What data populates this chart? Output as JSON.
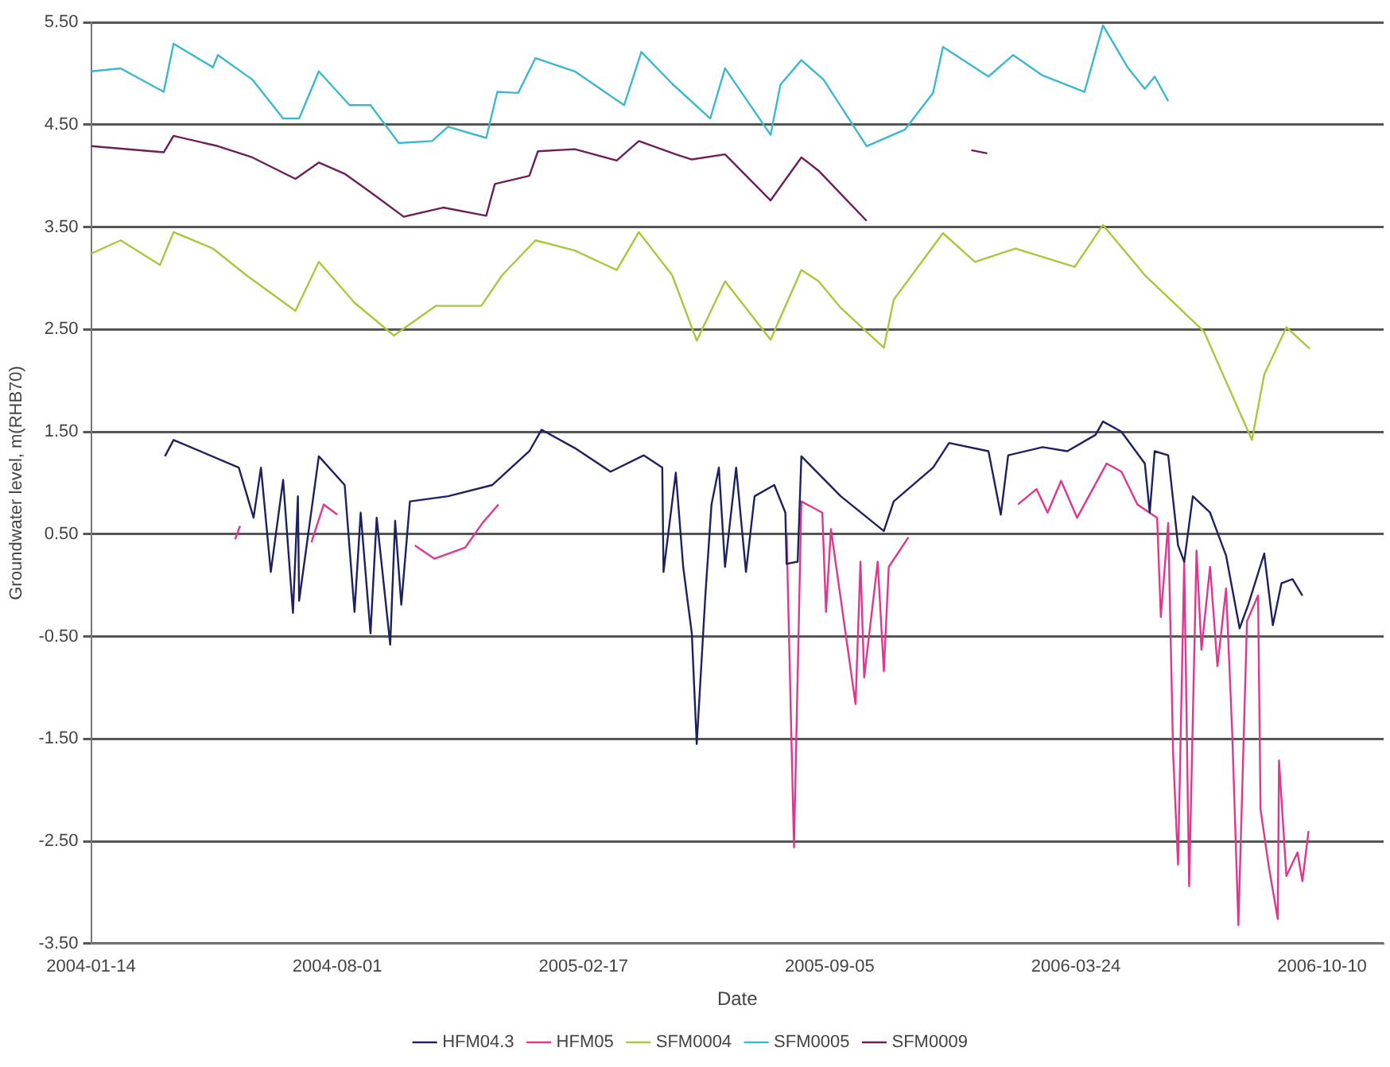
{
  "chart_data": {
    "type": "line",
    "xlabel": "Date",
    "ylabel": "Groundwater level, m(RHB70)",
    "legend": "bottom",
    "grid": "y",
    "marker": "none",
    "line_style": "solid",
    "xlim": [
      "2004-01-14",
      "2006-11-29"
    ],
    "xticks": [
      "2004-01-14",
      "2004-08-01",
      "2005-02-17",
      "2005-09-05",
      "2006-03-24",
      "2006-10-10"
    ],
    "ylim": [
      -3.5,
      5.5
    ],
    "yticks": [
      {
        "value": -3.5,
        "label": "-3.50"
      },
      {
        "value": -2.5,
        "label": "-2.50"
      },
      {
        "value": -1.5,
        "label": "-1.50"
      },
      {
        "value": -0.5,
        "label": "-0.50"
      },
      {
        "value": 0.5,
        "label": "0.50"
      },
      {
        "value": 1.5,
        "label": "1.50"
      },
      {
        "value": 2.5,
        "label": "2.50"
      },
      {
        "value": 3.5,
        "label": "3.50"
      },
      {
        "value": 4.5,
        "label": "4.50"
      },
      {
        "value": 5.5,
        "label": "5.50"
      }
    ],
    "series": [
      {
        "name": "HFM04.3",
        "color": "#1f2060",
        "x": [
          "2004-03-14",
          "2004-03-21",
          "2004-05-13",
          "2004-05-25",
          "2004-05-31",
          "2004-06-08",
          "2004-06-18",
          "2004-06-26",
          "2004-06-30",
          "2004-07-01",
          "2004-07-17",
          "2004-08-07",
          "2004-08-15",
          "2004-08-20",
          "2004-08-28",
          "2004-09-02",
          "2004-09-13",
          "2004-09-17",
          "2004-09-22",
          "2004-09-29",
          "2004-10-30",
          "2004-12-05",
          "2005-01-04",
          "2005-01-14",
          "2005-02-10",
          "2005-03-11",
          "2005-04-07",
          "2005-04-22",
          "2005-04-23",
          "2005-05-03",
          "2005-05-09",
          "2005-05-16",
          "2005-05-20",
          "2005-05-27",
          "2005-06-01",
          "2005-06-07",
          "2005-06-12",
          "2005-06-21",
          "2005-06-29",
          "2005-07-06",
          "2005-07-22",
          "2005-07-31",
          "2005-08-01",
          "2005-08-10",
          "2005-08-13",
          "2005-09-14",
          "2005-10-19",
          "2005-10-27",
          "2005-11-28",
          "2005-12-11",
          "2006-01-12",
          "2006-01-22",
          "2006-01-28",
          "2006-02-25",
          "2006-03-17",
          "2006-04-09",
          "2006-04-15",
          "2006-04-30",
          "2006-05-19",
          "2006-05-23",
          "2006-05-27",
          "2006-06-07",
          "2006-06-15",
          "2006-06-20",
          "2006-06-27",
          "2006-07-11",
          "2006-07-24",
          "2006-08-04",
          "2006-08-11",
          "2006-08-24",
          "2006-08-31",
          "2006-09-07",
          "2006-09-16",
          "2006-09-24"
        ],
        "values": [
          1.26,
          1.42,
          1.15,
          0.66,
          1.15,
          0.13,
          1.03,
          -0.27,
          0.87,
          -0.15,
          1.26,
          0.98,
          -0.26,
          0.71,
          -0.47,
          0.66,
          -0.58,
          0.63,
          -0.19,
          0.82,
          0.87,
          0.98,
          1.31,
          1.52,
          1.34,
          1.11,
          1.27,
          1.15,
          0.13,
          1.1,
          0.18,
          -0.47,
          -1.55,
          -0.1,
          0.79,
          1.15,
          0.18,
          1.15,
          0.13,
          0.87,
          0.98,
          0.71,
          0.21,
          0.23,
          1.26,
          0.87,
          0.53,
          0.82,
          1.15,
          1.39,
          1.31,
          0.69,
          1.27,
          1.35,
          1.31,
          1.47,
          1.6,
          1.5,
          1.19,
          0.71,
          1.31,
          1.27,
          0.39,
          0.23,
          0.87,
          0.71,
          0.29,
          -0.42,
          -0.19,
          0.31,
          -0.39,
          0.02,
          0.06,
          -0.1
        ]
      },
      {
        "name": "HFM05",
        "color": "#e0368e",
        "x": [
          "2004-05-10",
          "2004-05-14",
          "2004-06-15",
          "2004-07-11",
          "2004-07-21",
          "2004-08-01",
          "2004-09-01",
          "2004-10-03",
          "2004-10-19",
          "2004-11-13",
          "2004-11-27",
          "2004-12-10",
          "2005-04-01",
          "2005-08-01",
          "2005-08-07",
          "2005-08-13",
          "2005-08-30",
          "2005-09-02",
          "2005-09-06",
          "2005-09-26",
          "2005-09-30",
          "2005-10-03",
          "2005-10-14",
          "2005-10-19",
          "2005-10-23",
          "2005-11-08",
          "2006-01-01",
          "2006-02-05",
          "2006-02-20",
          "2006-03-01",
          "2006-03-12",
          "2006-03-25",
          "2006-04-18",
          "2006-04-30",
          "2006-05-13",
          "2006-05-29",
          "2006-06-01",
          "2006-06-07",
          "2006-06-11",
          "2006-06-15",
          "2006-06-20",
          "2006-06-24",
          "2006-06-30",
          "2006-07-04",
          "2006-07-11",
          "2006-07-17",
          "2006-07-24",
          "2006-07-29",
          "2006-08-03",
          "2006-08-10",
          "2006-08-19",
          "2006-08-21",
          "2006-08-28",
          "2006-09-04",
          "2006-09-05",
          "2006-09-11",
          "2006-09-20",
          "2006-09-24",
          "2006-09-29"
        ],
        "values": [
          0.45,
          0.58,
          null,
          0.42,
          0.79,
          0.69,
          null,
          0.39,
          0.26,
          0.37,
          0.61,
          0.79,
          null,
          0.5,
          -2.56,
          0.82,
          0.71,
          -0.26,
          0.55,
          -1.16,
          0.23,
          -0.9,
          0.23,
          -0.84,
          0.18,
          0.47,
          null,
          0.79,
          0.94,
          0.71,
          1.02,
          0.66,
          1.19,
          1.11,
          0.79,
          0.66,
          -0.31,
          0.61,
          -1.65,
          -2.73,
          0.23,
          -2.94,
          0.34,
          -0.63,
          0.18,
          -0.79,
          -0.03,
          -1.44,
          -3.32,
          -0.35,
          -0.1,
          -2.19,
          -2.77,
          -3.26,
          -1.71,
          -2.84,
          -2.61,
          -2.89,
          -2.4
        ]
      },
      {
        "name": "SFM0004",
        "color": "#a8c83c",
        "x": [
          "2004-01-14",
          "2004-02-07",
          "2004-03-10",
          "2004-03-21",
          "2004-04-22",
          "2004-05-19",
          "2004-06-28",
          "2004-07-17",
          "2004-08-15",
          "2004-09-16",
          "2004-10-20",
          "2004-11-26",
          "2004-12-13",
          "2005-01-09",
          "2005-02-10",
          "2005-03-16",
          "2005-04-03",
          "2005-04-30",
          "2005-05-20",
          "2005-06-12",
          "2005-07-19",
          "2005-08-13",
          "2005-08-27",
          "2005-09-14",
          "2005-10-19",
          "2005-10-27",
          "2005-12-06",
          "2006-01-01",
          "2006-02-03",
          "2006-03-23",
          "2006-04-15",
          "2006-05-19",
          "2006-07-06",
          "2006-08-14",
          "2006-08-24",
          "2006-09-11",
          "2006-09-30"
        ],
        "values": [
          3.24,
          3.37,
          3.13,
          3.45,
          3.29,
          3.03,
          2.68,
          3.16,
          2.76,
          2.44,
          2.73,
          2.73,
          3.03,
          3.37,
          3.27,
          3.08,
          3.45,
          3.03,
          2.39,
          2.97,
          2.4,
          3.08,
          2.97,
          2.71,
          2.32,
          2.79,
          3.44,
          3.16,
          3.29,
          3.11,
          3.52,
          3.03,
          2.48,
          1.42,
          2.06,
          2.52,
          2.31
        ]
      },
      {
        "name": "SFM0005",
        "color": "#3ab8cc",
        "x": [
          "2004-01-14",
          "2004-02-07",
          "2004-03-13",
          "2004-03-21",
          "2004-04-22",
          "2004-04-26",
          "2004-05-24",
          "2004-06-18",
          "2004-07-01",
          "2004-07-17",
          "2004-08-11",
          "2004-08-28",
          "2004-09-20",
          "2004-10-17",
          "2004-10-30",
          "2004-11-30",
          "2004-12-09",
          "2004-12-26",
          "2005-01-09",
          "2005-02-10",
          "2005-03-22",
          "2005-04-05",
          "2005-04-30",
          "2005-05-31",
          "2005-06-12",
          "2005-07-19",
          "2005-07-27",
          "2005-08-13",
          "2005-08-31",
          "2005-10-05",
          "2005-11-05",
          "2005-11-28",
          "2005-12-06",
          "2006-01-12",
          "2006-02-01",
          "2006-02-25",
          "2006-03-31",
          "2006-04-15",
          "2006-05-05",
          "2006-05-19",
          "2006-05-27",
          "2006-06-07"
        ],
        "values": [
          5.02,
          5.05,
          4.82,
          5.29,
          5.06,
          5.18,
          4.94,
          4.56,
          4.56,
          5.02,
          4.69,
          4.69,
          4.32,
          4.34,
          4.48,
          4.37,
          4.82,
          4.81,
          5.15,
          5.02,
          4.69,
          5.21,
          4.9,
          4.56,
          5.05,
          4.4,
          4.89,
          5.13,
          4.94,
          4.29,
          4.45,
          4.81,
          5.26,
          4.97,
          5.18,
          4.98,
          4.82,
          5.47,
          5.06,
          4.85,
          4.97,
          4.73
        ]
      },
      {
        "name": "SFM0009",
        "color": "#6e1f5a",
        "x": [
          "2004-01-14",
          "2004-03-13",
          "2004-03-21",
          "2004-04-26",
          "2004-05-24",
          "2004-06-28",
          "2004-07-17",
          "2004-08-07",
          "2004-08-28",
          "2004-09-24",
          "2004-10-26",
          "2004-11-30",
          "2004-12-07",
          "2005-01-04",
          "2005-01-11",
          "2005-02-10",
          "2005-03-16",
          "2005-04-03",
          "2005-05-03",
          "2005-05-16",
          "2005-06-12",
          "2005-07-19",
          "2005-08-13",
          "2005-08-27",
          "2005-10-05",
          "2005-12-01",
          "2005-12-29",
          "2006-01-11"
        ],
        "values": [
          4.29,
          4.23,
          4.39,
          4.29,
          4.18,
          3.97,
          4.13,
          4.02,
          3.84,
          3.6,
          3.69,
          3.61,
          3.92,
          4.0,
          4.24,
          4.26,
          4.15,
          4.34,
          4.21,
          4.16,
          4.21,
          3.76,
          4.18,
          4.05,
          3.56,
          null,
          4.25,
          4.22
        ]
      }
    ]
  }
}
